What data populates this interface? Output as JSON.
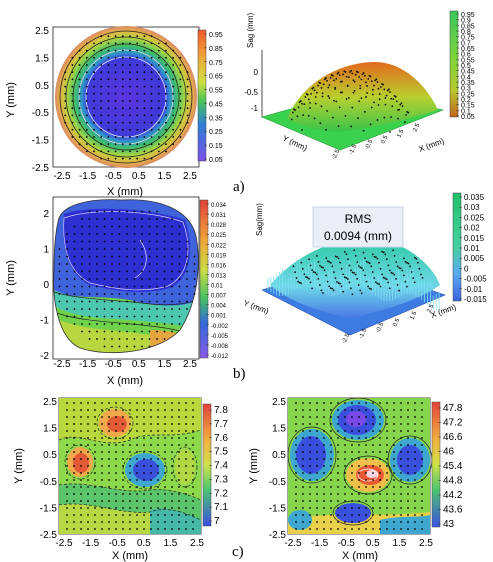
{
  "chart_data": [
    {
      "id": "a_map",
      "type": "heatmap",
      "title": "",
      "xlabel": "X (mm)",
      "ylabel": "Y (mm)",
      "xticks": [
        "-2.5",
        "-1.5",
        "-0.5",
        "0.5",
        "1.5",
        "2.5"
      ],
      "yticks": [
        "2.5",
        "1.5",
        "0.5",
        "-0.5",
        "-1.5",
        "-2.5"
      ],
      "xlim": [
        -2.5,
        2.5
      ],
      "ylim": [
        -2.5,
        2.5
      ],
      "colorbar_ticks": [
        "0.95",
        "0.85",
        "0.75",
        "0.65",
        "0.55",
        "0.45",
        "0.35",
        "0.25",
        "0.15",
        "0.05"
      ],
      "colorbar_range": [
        0.05,
        0.95
      ],
      "pattern": "radial, low in center rising to edge",
      "colors": {
        "low": "#3a2bd8",
        "mid": "#49c04a",
        "high": "#e48a3a"
      }
    },
    {
      "id": "a_surface",
      "type": "surface",
      "zlabel": "Sag (mm)",
      "xlabel": "X (mm)",
      "ylabel": "Y (mm)",
      "zticks": [
        "0",
        "-0.5",
        "-1"
      ],
      "colorbar_ticks": [
        "0.95",
        "0.9",
        "0.85",
        "0.8",
        "0.75",
        "0.7",
        "0.65",
        "0.6",
        "0.55",
        "0.5",
        "0.45",
        "0.4",
        "0.35",
        "0.3",
        "0.25",
        "0.2",
        "0.15",
        "0.1",
        "0.05"
      ],
      "colorbar_range": [
        0.05,
        0.95
      ]
    },
    {
      "id": "b_map",
      "type": "heatmap",
      "xlabel": "X (mm)",
      "ylabel": "Y (mm)",
      "xticks": [
        "-2.5",
        "-1.5",
        "-0.5",
        "0.5",
        "1.5",
        "2.5"
      ],
      "yticks": [
        "2",
        "1",
        "0",
        "-1",
        "-2"
      ],
      "colorbar_ticks": [
        "0.034",
        "0.031",
        "0.028",
        "0.025",
        "0.022",
        "0.019",
        "0.016",
        "0.013",
        "0.01",
        "0.007",
        "0.004",
        "0.001",
        "-0.002",
        "-0.005",
        "-0.008",
        "-0.012"
      ],
      "colorbar_range": [
        -0.012,
        0.034
      ]
    },
    {
      "id": "b_surface",
      "type": "surface",
      "zlabel": "Sag(mm)",
      "xlabel": "X (mm)",
      "ylabel": "Y (mm)",
      "annotation": {
        "title": "RMS",
        "value": "0.0094 (mm)"
      },
      "colorbar_ticks": [
        "0.035",
        "0.03",
        "0.025",
        "0.02",
        "0.015",
        "0.01",
        "0.005",
        "0",
        "-0.005",
        "-0.01",
        "-0.015"
      ],
      "colorbar_range": [
        -0.015,
        0.035
      ]
    },
    {
      "id": "c_map_left",
      "type": "heatmap",
      "xlabel": "X (mm)",
      "ylabel": "Y (mm)",
      "xticks": [
        "-2.5",
        "-1.5",
        "-0.5",
        "0.5",
        "1.5",
        "2.5"
      ],
      "yticks": [
        "2.5",
        "1.5",
        "0.5",
        "-0.5",
        "-1.5",
        "-2.5"
      ],
      "colorbar_ticks": [
        "7.8",
        "7.7",
        "7.6",
        "7.5",
        "7.4",
        "7.3",
        "7.2",
        "7.1",
        "7"
      ],
      "colorbar_range": [
        7.0,
        7.8
      ]
    },
    {
      "id": "c_map_right",
      "type": "heatmap",
      "xlabel": "X (mm)",
      "ylabel": "Y (mm)",
      "xticks": [
        "-2.5",
        "-1.5",
        "-0.5",
        "0.5",
        "1.5",
        "2.5"
      ],
      "yticks": [
        "2.5",
        "1.5",
        "0.5",
        "-0.5",
        "-1.5",
        "-2.5"
      ],
      "colorbar_ticks": [
        "47.8",
        "47.2",
        "46.6",
        "46",
        "45.4",
        "44.8",
        "44.2",
        "43.6",
        "43"
      ],
      "colorbar_range": [
        43.0,
        47.8
      ]
    }
  ],
  "captions": {
    "a": "a)",
    "b": "b)",
    "c": "c)"
  }
}
